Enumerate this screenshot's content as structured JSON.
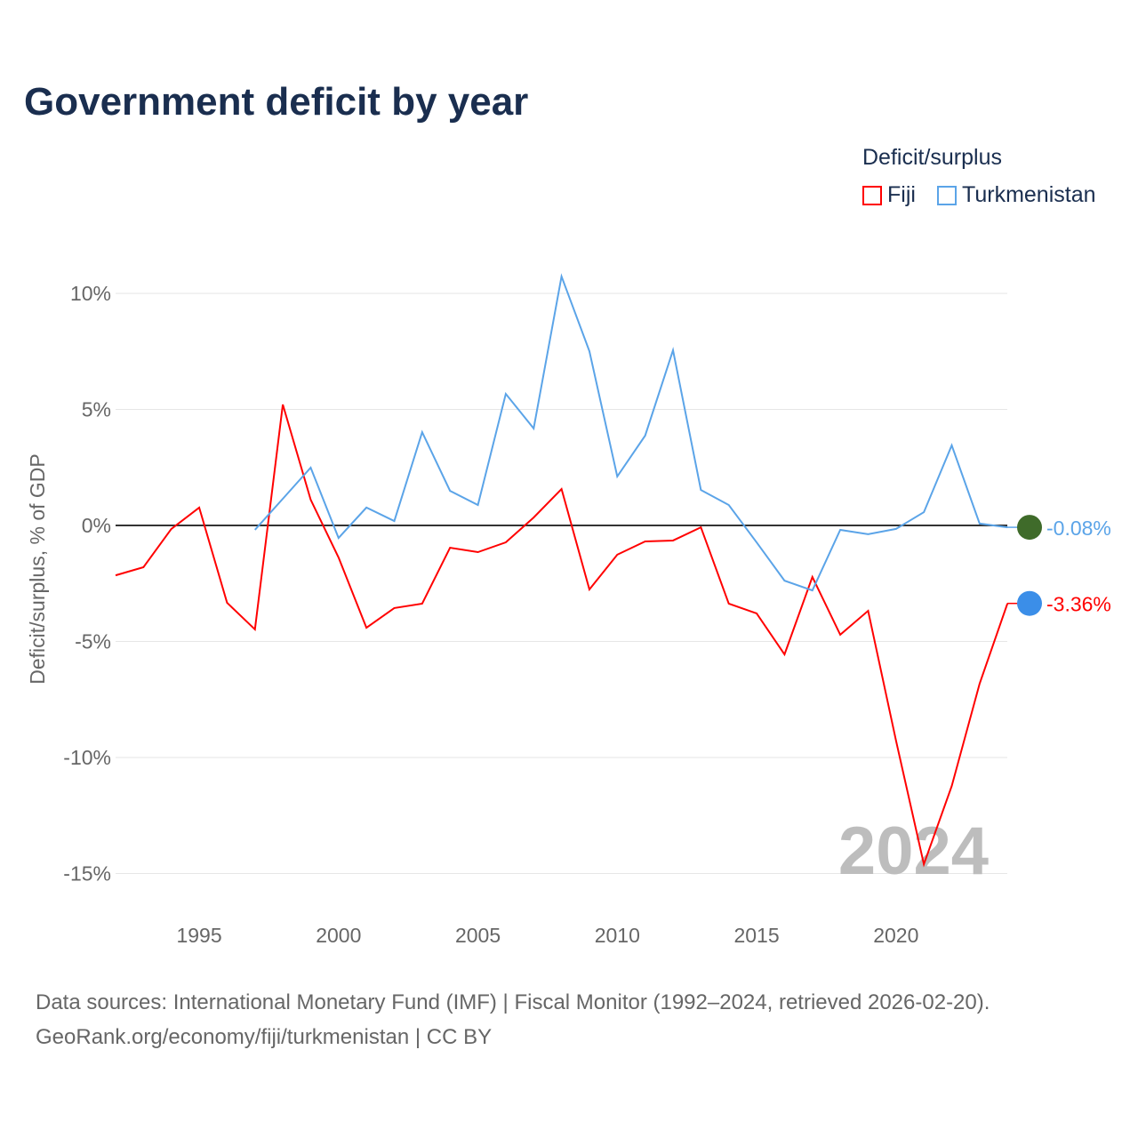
{
  "chart_data": {
    "type": "line",
    "title": "Government deficit by year",
    "ylabel": "Deficit/surplus, % of GDP",
    "xlabel": "",
    "xlim": [
      1992,
      2024
    ],
    "ylim": [
      -16.5,
      11
    ],
    "yticks": [
      10,
      5,
      0,
      -5,
      -10,
      -15
    ],
    "ytick_labels": [
      "10%",
      "5%",
      "0%",
      "-5%",
      "-10%",
      "-15%"
    ],
    "xticks": [
      1995,
      2000,
      2005,
      2010,
      2015,
      2020
    ],
    "xtick_labels": [
      "1995",
      "2000",
      "2005",
      "2010",
      "2015",
      "2020"
    ],
    "legend_title": "Deficit/surplus",
    "legend_position": "top-right",
    "watermark_year": "2024",
    "series": [
      {
        "name": "Fiji",
        "color": "#ff0000",
        "end_label": "-3.36%",
        "x": [
          1992,
          1993,
          1994,
          1995,
          1996,
          1997,
          1998,
          1999,
          2000,
          2001,
          2002,
          2003,
          2004,
          2005,
          2006,
          2007,
          2008,
          2009,
          2010,
          2011,
          2012,
          2013,
          2014,
          2015,
          2016,
          2017,
          2018,
          2019,
          2020,
          2021,
          2022,
          2023,
          2024
        ],
        "values": [
          -2.15,
          -1.8,
          -0.15,
          0.77,
          -3.33,
          -4.48,
          5.21,
          1.11,
          -1.38,
          -4.41,
          -3.56,
          -3.37,
          -0.96,
          -1.15,
          -0.73,
          0.34,
          1.57,
          -2.76,
          -1.26,
          -0.69,
          -0.65,
          -0.08,
          -3.37,
          -3.79,
          -5.56,
          -2.22,
          -4.71,
          -3.68,
          -9.27,
          -14.6,
          -11.23,
          -6.82,
          -3.36
        ]
      },
      {
        "name": "Turkmenistan",
        "color": "#5ba4e8",
        "end_label": "-0.08%",
        "x": [
          1997,
          1998,
          1999,
          2000,
          2001,
          2002,
          2003,
          2004,
          2005,
          2006,
          2007,
          2008,
          2009,
          2010,
          2011,
          2012,
          2013,
          2014,
          2015,
          2016,
          2017,
          2018,
          2019,
          2020,
          2021,
          2022,
          2023,
          2024
        ],
        "values": [
          -0.19,
          1.15,
          2.49,
          -0.54,
          0.77,
          0.19,
          4.02,
          1.49,
          0.88,
          5.67,
          4.18,
          10.73,
          7.51,
          2.11,
          3.87,
          7.55,
          1.53,
          0.88,
          -0.73,
          -2.38,
          -2.8,
          -0.19,
          -0.38,
          -0.15,
          0.57,
          3.45,
          0.08,
          -0.08
        ]
      }
    ]
  },
  "source": {
    "line1": "Data sources: International Monetary Fund (IMF) | Fiscal Monitor (1992–2024, retrieved 2026-02-20).",
    "line2": "GeoRank.org/economy/fiji/turkmenistan | CC BY"
  }
}
